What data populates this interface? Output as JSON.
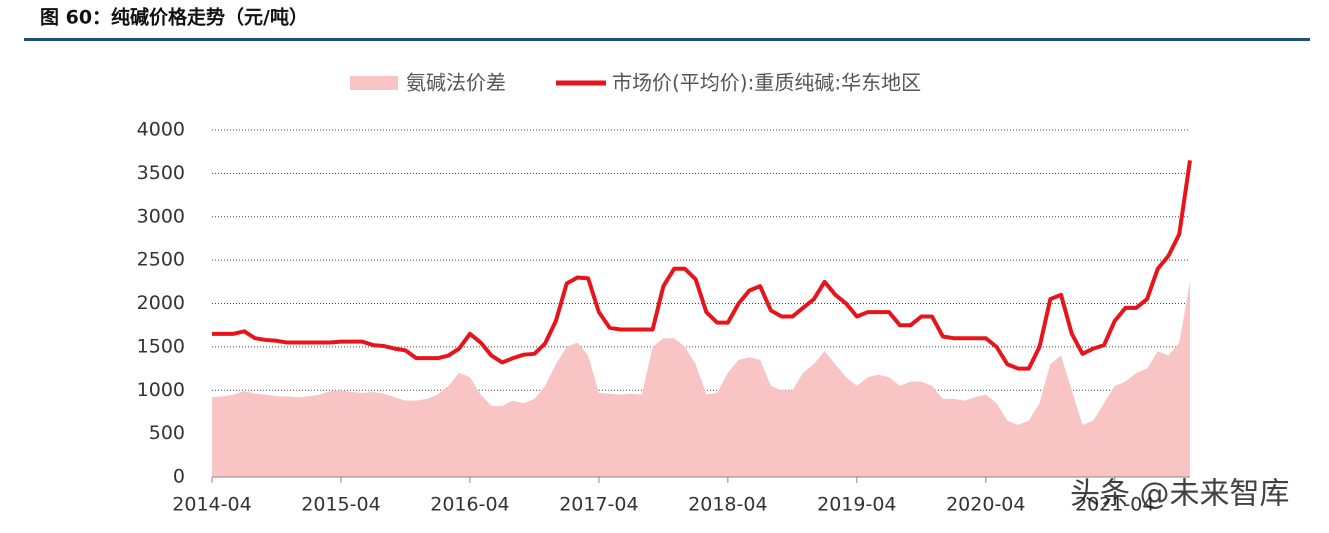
{
  "chart_data": {
    "type": "line-area",
    "title": "图 60：纯碱价格走势（元/吨）",
    "watermark": "头条 @未来智库",
    "x": [
      "2014-04",
      "2014-05",
      "2014-06",
      "2014-07",
      "2014-08",
      "2014-09",
      "2014-10",
      "2014-11",
      "2014-12",
      "2015-01",
      "2015-02",
      "2015-03",
      "2015-04",
      "2015-05",
      "2015-06",
      "2015-07",
      "2015-08",
      "2015-09",
      "2015-10",
      "2015-11",
      "2015-12",
      "2016-01",
      "2016-02",
      "2016-03",
      "2016-04",
      "2016-05",
      "2016-06",
      "2016-07",
      "2016-08",
      "2016-09",
      "2016-10",
      "2016-11",
      "2016-12",
      "2017-01",
      "2017-02",
      "2017-03",
      "2017-04",
      "2017-05",
      "2017-06",
      "2017-07",
      "2017-08",
      "2017-09",
      "2017-10",
      "2017-11",
      "2017-12",
      "2018-01",
      "2018-02",
      "2018-03",
      "2018-04",
      "2018-05",
      "2018-06",
      "2018-07",
      "2018-08",
      "2018-09",
      "2018-10",
      "2018-11",
      "2018-12",
      "2019-01",
      "2019-02",
      "2019-03",
      "2019-04",
      "2019-05",
      "2019-06",
      "2019-07",
      "2019-08",
      "2019-09",
      "2019-10",
      "2019-11",
      "2019-12",
      "2020-01",
      "2020-02",
      "2020-03",
      "2020-04",
      "2020-05",
      "2020-06",
      "2020-07",
      "2020-08",
      "2020-09",
      "2020-10",
      "2020-11",
      "2020-12",
      "2021-01",
      "2021-02",
      "2021-03",
      "2021-04",
      "2021-05",
      "2021-06",
      "2021-07",
      "2021-08",
      "2021-09",
      "2021-10",
      "2021-11"
    ],
    "series": [
      {
        "name": "氨碱法价差",
        "kind": "area",
        "color": "#f8c4c4",
        "values": [
          920,
          930,
          950,
          990,
          960,
          950,
          930,
          930,
          920,
          930,
          950,
          990,
          1000,
          980,
          970,
          980,
          960,
          920,
          880,
          880,
          900,
          950,
          1050,
          1200,
          1150,
          950,
          820,
          820,
          880,
          850,
          900,
          1050,
          1300,
          1500,
          1550,
          1400,
          970,
          960,
          950,
          960,
          950,
          1500,
          1600,
          1600,
          1500,
          1300,
          950,
          970,
          1200,
          1350,
          1380,
          1350,
          1050,
          1000,
          1000,
          1200,
          1300,
          1450,
          1300,
          1150,
          1050,
          1150,
          1180,
          1150,
          1050,
          1100,
          1100,
          1050,
          900,
          900,
          880,
          920,
          950,
          850,
          650,
          600,
          650,
          850,
          1300,
          1400,
          1000,
          600,
          650,
          850,
          1050,
          1100,
          1200,
          1250,
          1450,
          1400,
          1550,
          2250
        ]
      },
      {
        "name": "市场价(平均价):重质纯碱:华东地区",
        "kind": "line",
        "color": "#e8141c",
        "values": [
          1650,
          1650,
          1650,
          1680,
          1600,
          1580,
          1570,
          1550,
          1550,
          1550,
          1550,
          1550,
          1560,
          1560,
          1560,
          1520,
          1510,
          1480,
          1460,
          1370,
          1370,
          1370,
          1400,
          1480,
          1650,
          1550,
          1400,
          1320,
          1370,
          1410,
          1420,
          1540,
          1800,
          2230,
          2300,
          2290,
          1900,
          1720,
          1700,
          1700,
          1700,
          1700,
          2200,
          2400,
          2400,
          2280,
          1900,
          1780,
          1780,
          2000,
          2150,
          2200,
          1920,
          1850,
          1850,
          1950,
          2050,
          2250,
          2100,
          2000,
          1850,
          1900,
          1900,
          1900,
          1750,
          1750,
          1850,
          1850,
          1620,
          1600,
          1600,
          1600,
          1600,
          1500,
          1300,
          1250,
          1250,
          1500,
          2050,
          2100,
          1650,
          1420,
          1480,
          1520,
          1800,
          1950,
          1950,
          2050,
          2400,
          2550,
          2800,
          3650
        ]
      }
    ],
    "ylim": [
      0,
      4000
    ],
    "yticks": [
      0,
      500,
      1000,
      1500,
      2000,
      2500,
      3000,
      3500,
      4000
    ],
    "xticks": [
      "2014-04",
      "2015-04",
      "2016-04",
      "2017-04",
      "2018-04",
      "2019-04",
      "2020-04",
      "2021-04"
    ],
    "grid": true
  }
}
